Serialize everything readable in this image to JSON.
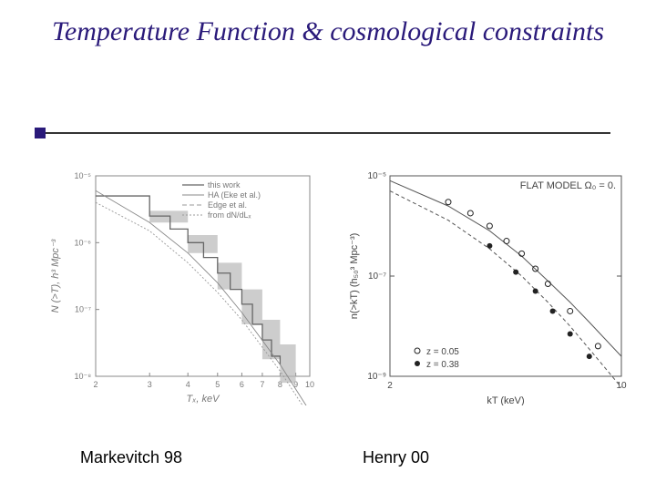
{
  "title": "Temperature Function  & cosmological constraints",
  "left_caption": "Markevitch 98",
  "right_caption": "Henry 00",
  "left_chart": {
    "type": "line-step",
    "xlabel": "Tₓ, keV",
    "ylabel": "N (>T), h³ Mpc⁻³",
    "xscale": "log",
    "yscale": "log",
    "xlim": [
      2,
      10
    ],
    "ylim": [
      1e-08,
      1e-05
    ],
    "xticks": [
      2,
      3,
      4,
      5,
      6,
      7,
      8,
      9,
      10
    ],
    "xtick_labels": [
      "2",
      "3",
      "4",
      "5",
      "6",
      "7",
      "8",
      "9",
      "10"
    ],
    "yticks": [
      1e-08,
      1e-07,
      1e-06,
      1e-05
    ],
    "ytick_labels": [
      "10⁻⁸",
      "10⁻⁷",
      "10⁻⁶",
      "10⁻⁵"
    ],
    "legend": {
      "position": "top-right-inside",
      "items": [
        "this work",
        "HA (Eke et al.)",
        "Edge et al.",
        "from dN/dLₓ"
      ]
    },
    "legend_fontsize": 9,
    "label_fontsize": 11,
    "tick_fontsize": 9,
    "colors": {
      "axis": "#888888",
      "text": "#777777",
      "band": "#b8b8b8",
      "this_work": "#666666",
      "ha": "#888888",
      "edge": "#999999",
      "dndl": "#999999"
    },
    "this_work_step": [
      [
        2.0,
        5e-06
      ],
      [
        3.0,
        2.5e-06
      ],
      [
        3.5,
        1.6e-06
      ],
      [
        4.0,
        1e-06
      ],
      [
        4.5,
        6e-07
      ],
      [
        5.0,
        3.5e-07
      ],
      [
        5.5,
        2e-07
      ],
      [
        6.0,
        1.2e-07
      ],
      [
        6.5,
        6e-08
      ],
      [
        7.0,
        3.5e-08
      ],
      [
        7.5,
        2e-08
      ],
      [
        8.0,
        1.5e-08
      ]
    ],
    "band_step": [
      [
        3.0,
        3e-06,
        2e-06
      ],
      [
        4.0,
        1.3e-06,
        7e-07
      ],
      [
        5.0,
        5e-07,
        2e-07
      ],
      [
        6.0,
        2e-07,
        6e-08
      ],
      [
        7.0,
        7e-08,
        1.8e-08
      ],
      [
        8.0,
        3e-08,
        8e-09
      ],
      [
        9.0,
        1.5e-08,
        4e-09
      ]
    ],
    "ha_curve": [
      [
        2.0,
        6e-06
      ],
      [
        3.0,
        2e-06
      ],
      [
        4.0,
        7e-07
      ],
      [
        5.0,
        2.5e-07
      ],
      [
        6.0,
        9e-08
      ],
      [
        8.0,
        1.5e-08
      ],
      [
        10.0,
        3e-09
      ]
    ],
    "dndl_curve": [
      [
        2.0,
        4e-06
      ],
      [
        3.0,
        1.5e-06
      ],
      [
        4.0,
        5e-07
      ],
      [
        5.0,
        1.8e-07
      ],
      [
        6.0,
        7e-08
      ],
      [
        8.0,
        1.2e-08
      ],
      [
        10.0,
        2.5e-09
      ]
    ]
  },
  "right_chart": {
    "type": "scatter-line",
    "xlabel": "kT (keV)",
    "ylabel": "n(>kT) (h₅₀³ Mpc⁻³)",
    "xscale": "log",
    "yscale": "log",
    "xlim": [
      2,
      10
    ],
    "ylim": [
      1e-09,
      1e-05
    ],
    "xticks": [
      2,
      10
    ],
    "xtick_labels": [
      "2",
      "10"
    ],
    "yticks": [
      1e-09,
      1e-07,
      1e-05
    ],
    "ytick_labels": [
      "10⁻⁹",
      "10⁻⁷",
      "10⁻⁵"
    ],
    "annotation": "FLAT MODEL Ω₀ = 0.",
    "annotation_fontsize": 11,
    "label_fontsize": 11,
    "tick_fontsize": 10,
    "legend": {
      "position": "bottom-left-inside",
      "items": [
        {
          "marker": "open-circle",
          "label": "z = 0.05"
        },
        {
          "marker": "filled-circle",
          "label": "z = 0.38"
        }
      ]
    },
    "colors": {
      "axis": "#555555",
      "text": "#444444",
      "curve": "#555555",
      "marker": "#222222"
    },
    "curve_low_z": [
      [
        2.0,
        8e-06
      ],
      [
        3.0,
        2.5e-06
      ],
      [
        4.0,
        8e-07
      ],
      [
        5.0,
        2.5e-07
      ],
      [
        6.0,
        8e-08
      ],
      [
        7.0,
        3e-08
      ],
      [
        8.0,
        1.2e-08
      ],
      [
        10.0,
        2.5e-09
      ]
    ],
    "curve_high_z": [
      [
        2.0,
        5e-06
      ],
      [
        3.0,
        1.3e-06
      ],
      [
        4.0,
        3.5e-07
      ],
      [
        5.0,
        1e-07
      ],
      [
        6.0,
        3e-08
      ],
      [
        7.0,
        1e-08
      ],
      [
        8.0,
        3.5e-09
      ],
      [
        10.0,
        6e-10
      ]
    ],
    "points_open": [
      [
        3.0,
        3e-06
      ],
      [
        3.5,
        1.8e-06
      ],
      [
        4.0,
        1e-06
      ],
      [
        4.5,
        5e-07
      ],
      [
        5.0,
        2.8e-07
      ],
      [
        5.5,
        1.4e-07
      ],
      [
        6.0,
        7e-08
      ],
      [
        7.0,
        2e-08
      ],
      [
        8.5,
        4e-09
      ]
    ],
    "points_filled": [
      [
        4.0,
        4e-07
      ],
      [
        4.8,
        1.2e-07
      ],
      [
        5.5,
        5e-08
      ],
      [
        6.2,
        2e-08
      ],
      [
        7.0,
        7e-09
      ],
      [
        8.0,
        2.5e-09
      ]
    ]
  }
}
